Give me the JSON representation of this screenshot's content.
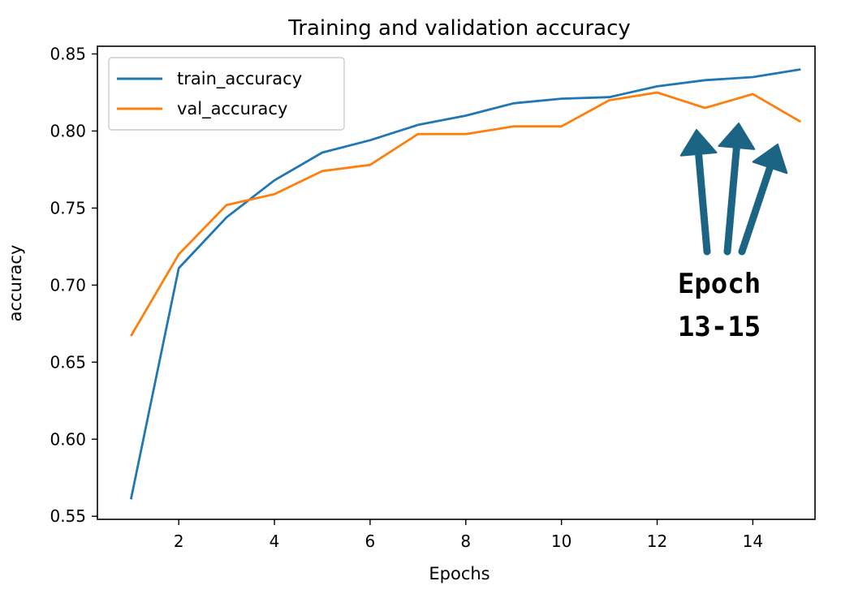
{
  "chart_data": {
    "type": "line",
    "title": "Training and validation accuracy",
    "xlabel": "Epochs",
    "ylabel": "accuracy",
    "xlim": [
      0.3,
      15.3
    ],
    "ylim": [
      0.548,
      0.855
    ],
    "xticks": [
      2,
      4,
      6,
      8,
      10,
      12,
      14
    ],
    "yticks": [
      0.55,
      0.6,
      0.65,
      0.7,
      0.75,
      0.8,
      0.85
    ],
    "grid": false,
    "legend_position": "top-left",
    "x": [
      1,
      2,
      3,
      4,
      5,
      6,
      7,
      8,
      9,
      10,
      11,
      12,
      13,
      14,
      15
    ],
    "series": [
      {
        "name": "train_accuracy",
        "color": "#1f77b4",
        "values": [
          0.561,
          0.711,
          0.744,
          0.768,
          0.786,
          0.794,
          0.804,
          0.81,
          0.818,
          0.821,
          0.822,
          0.829,
          0.833,
          0.835,
          0.84
        ]
      },
      {
        "name": "val_accuracy",
        "color": "#ff7f0e",
        "values": [
          0.667,
          0.72,
          0.752,
          0.759,
          0.774,
          0.778,
          0.798,
          0.798,
          0.803,
          0.803,
          0.82,
          0.825,
          0.815,
          0.824,
          0.806
        ]
      }
    ],
    "annotation": {
      "lines": [
        "Epoch",
        "13-15"
      ],
      "color": "#6a9a38",
      "arrow_color": "#1c6484",
      "arrow_count": 3
    }
  }
}
